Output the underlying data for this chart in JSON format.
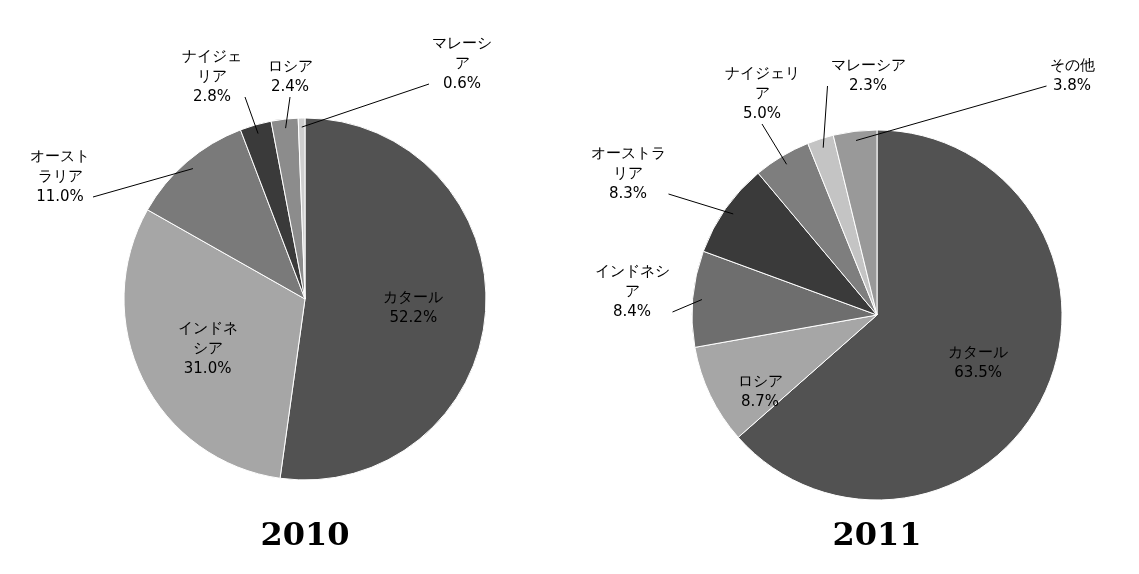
{
  "chart_data": [
    {
      "type": "pie",
      "title": "2010",
      "categories": [
        "カタール",
        "インドネシア",
        "オーストラリア",
        "ナイジェリア",
        "ロシア",
        "マレーシア"
      ],
      "values": [
        52.2,
        31.0,
        11.0,
        2.8,
        2.4,
        0.6
      ],
      "value_labels": [
        "52.2%",
        "31.0%",
        "11.0%",
        "2.8%",
        "2.4%",
        "0.6%"
      ],
      "colors": [
        "#525252",
        "#a6a6a6",
        "#7a7a7a",
        "#3a3a3a",
        "#8c8c8c",
        "#cfcfcf"
      ]
    },
    {
      "type": "pie",
      "title": "2011",
      "categories": [
        "カタール",
        "ロシア",
        "インドネシア",
        "オーストラリア",
        "ナイジェリア",
        "マレーシア",
        "その他"
      ],
      "values": [
        63.5,
        8.7,
        8.4,
        8.3,
        5.0,
        2.3,
        3.8
      ],
      "value_labels": [
        "63.5%",
        "8.7%",
        "8.4%",
        "8.3%",
        "5.0%",
        "2.3%",
        "3.8%"
      ],
      "colors": [
        "#525252",
        "#a6a6a6",
        "#6e6e6e",
        "#3a3a3a",
        "#7e7e7e",
        "#c4c4c4",
        "#999999"
      ]
    }
  ]
}
